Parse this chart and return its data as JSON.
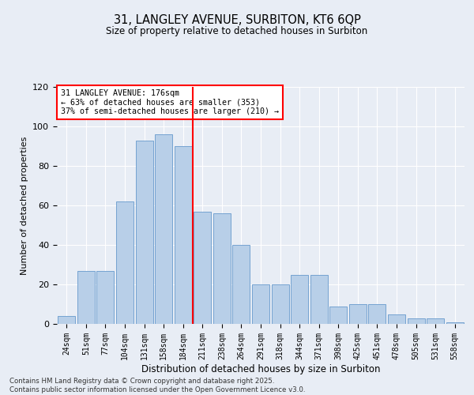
{
  "title_line1": "31, LANGLEY AVENUE, SURBITON, KT6 6QP",
  "title_line2": "Size of property relative to detached houses in Surbiton",
  "xlabel": "Distribution of detached houses by size in Surbiton",
  "ylabel": "Number of detached properties",
  "categories": [
    "24sqm",
    "51sqm",
    "77sqm",
    "104sqm",
    "131sqm",
    "158sqm",
    "184sqm",
    "211sqm",
    "238sqm",
    "264sqm",
    "291sqm",
    "318sqm",
    "344sqm",
    "371sqm",
    "398sqm",
    "425sqm",
    "451sqm",
    "478sqm",
    "505sqm",
    "531sqm",
    "558sqm"
  ],
  "bar_values": [
    4,
    27,
    27,
    62,
    93,
    96,
    90,
    57,
    56,
    40,
    20,
    20,
    25,
    25,
    9,
    10,
    10,
    5,
    3,
    3,
    1
  ],
  "ylim": [
    0,
    120
  ],
  "yticks": [
    0,
    20,
    40,
    60,
    80,
    100,
    120
  ],
  "bar_color": "#b8cfe8",
  "bar_edge_color": "#6699cc",
  "vline_x": 6.5,
  "vline_color": "red",
  "annotation_title": "31 LANGLEY AVENUE: 176sqm",
  "annotation_line1": "← 63% of detached houses are smaller (353)",
  "annotation_line2": "37% of semi-detached houses are larger (210) →",
  "annotation_box_color": "white",
  "annotation_box_edge_color": "red",
  "footer_line1": "Contains HM Land Registry data © Crown copyright and database right 2025.",
  "footer_line2": "Contains public sector information licensed under the Open Government Licence v3.0.",
  "background_color": "#e8edf5",
  "plot_bg_color": "#e8edf5"
}
